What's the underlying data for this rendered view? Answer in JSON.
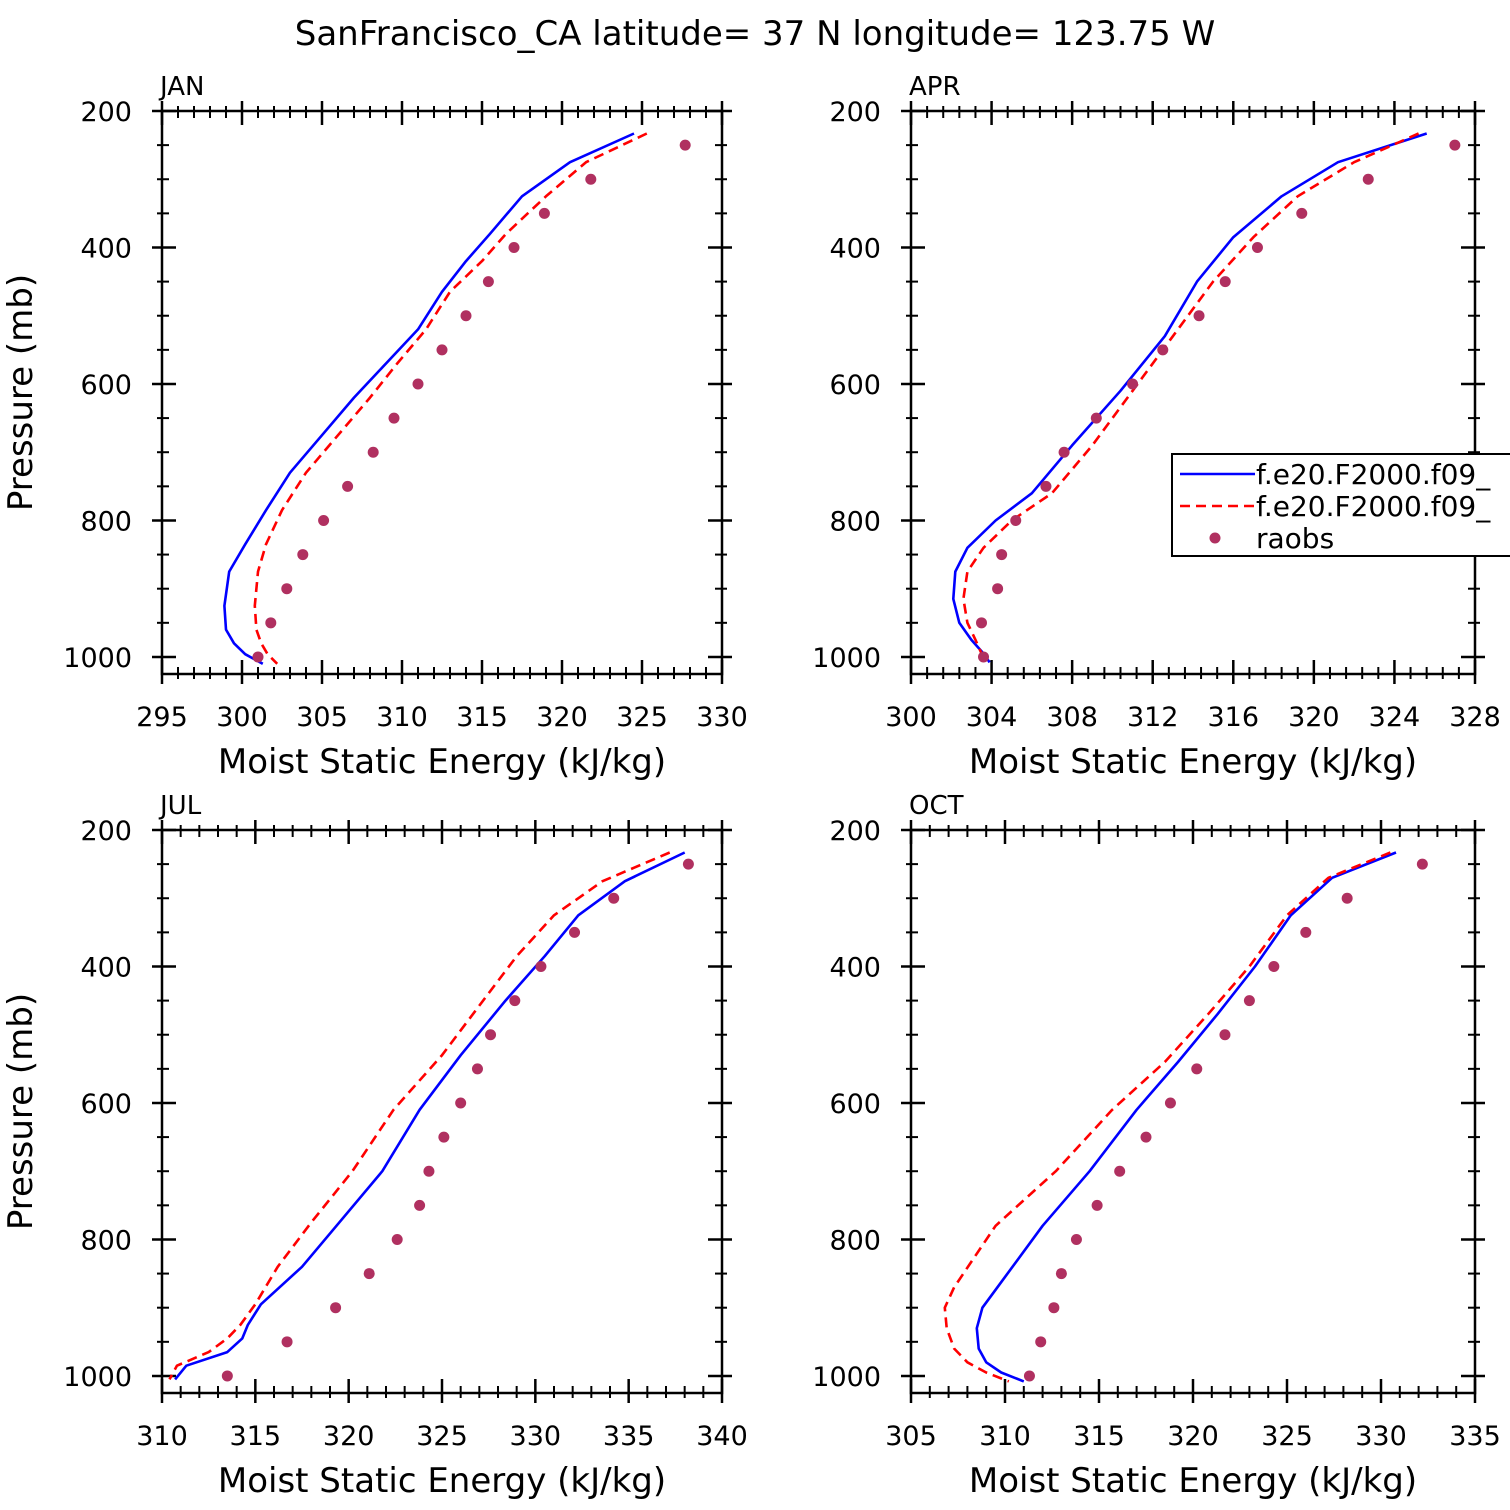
{
  "figure": {
    "title": "SanFrancisco_CA  latitude= 37 N longitude= 123.75 W"
  },
  "legend": {
    "entries": [
      {
        "label": "f.e20.F2000.f09_",
        "color": "#0000ff",
        "style": "solid"
      },
      {
        "label": "f.e20.F2000.f09_",
        "color": "#ff0000",
        "style": "dashed"
      },
      {
        "label": "raobs",
        "color": "#b03060",
        "style": "dots"
      }
    ]
  },
  "chart_data": [
    {
      "type": "line",
      "title": "JAN",
      "xlabel": "Moist Static Energy (kJ/kg)",
      "ylabel": "Pressure (mb)",
      "xlim": [
        295,
        330
      ],
      "ylim": [
        1000,
        200
      ],
      "x_ticks": [
        295,
        300,
        305,
        310,
        315,
        320,
        325,
        330
      ],
      "y_ticks": [
        200,
        400,
        600,
        800,
        1000
      ],
      "grid": false,
      "series": [
        {
          "name": "f.e20.F2000.f09_",
          "color": "#0000ff",
          "style": "solid",
          "x": [
            324.5,
            320.5,
            317.5,
            315.5,
            314,
            312.5,
            311,
            309,
            307,
            305,
            303,
            301.5,
            300.2,
            299.2,
            298.9,
            299,
            299.5,
            300.2,
            301.3
          ],
          "y": [
            233,
            275,
            325,
            380,
            420,
            465,
            520,
            570,
            620,
            675,
            730,
            785,
            835,
            875,
            925,
            960,
            980,
            996,
            1010
          ]
        },
        {
          "name": "f.e20.F2000.f09_",
          "color": "#ff0000",
          "style": "dashed",
          "x": [
            325.3,
            321.5,
            319,
            316.5,
            315,
            313,
            311.5,
            309.7,
            308,
            306,
            304,
            302.5,
            301.5,
            301,
            300.8,
            300.9,
            301.2,
            301.6,
            302.2
          ],
          "y": [
            233,
            275,
            325,
            380,
            420,
            465,
            520,
            570,
            620,
            675,
            730,
            785,
            835,
            875,
            925,
            960,
            980,
            996,
            1010
          ]
        },
        {
          "name": "raobs",
          "color": "#b03060",
          "style": "dots",
          "x": [
            327.7,
            321.8,
            318.9,
            317.0,
            315.4,
            314.0,
            312.5,
            311.0,
            309.5,
            308.2,
            306.6,
            305.1,
            303.8,
            302.8,
            301.8,
            301.0
          ],
          "y": [
            250,
            300,
            350,
            400,
            450,
            500,
            550,
            600,
            650,
            700,
            750,
            800,
            850,
            900,
            950,
            1000
          ]
        }
      ]
    },
    {
      "type": "line",
      "title": "APR",
      "xlabel": "Moist Static Energy (kJ/kg)",
      "ylabel": "",
      "xlim": [
        300,
        328
      ],
      "ylim": [
        1000,
        200
      ],
      "x_ticks": [
        300,
        304,
        308,
        312,
        316,
        320,
        324,
        328
      ],
      "y_ticks": [
        200,
        400,
        600,
        800,
        1000
      ],
      "grid": false,
      "series": [
        {
          "name": "f.e20.F2000.f09_",
          "color": "#0000ff",
          "style": "solid",
          "x": [
            325.6,
            321.2,
            318.4,
            316,
            314.2,
            312.6,
            310.4,
            308,
            306,
            304.2,
            302.8,
            302.2,
            302.1,
            302.4,
            303,
            303.6,
            303.9
          ],
          "y": [
            233,
            275,
            325,
            385,
            450,
            530,
            610,
            690,
            760,
            800,
            840,
            875,
            915,
            950,
            975,
            995,
            1008
          ]
        },
        {
          "name": "f.e20.F2000.f09_",
          "color": "#ff0000",
          "style": "dashed",
          "x": [
            325.2,
            322,
            319.2,
            317,
            315,
            313,
            311,
            309,
            307,
            305,
            303.6,
            302.8,
            302.6,
            302.8,
            303.2,
            303.5,
            303.6
          ],
          "y": [
            233,
            275,
            325,
            385,
            450,
            530,
            610,
            690,
            760,
            800,
            840,
            875,
            915,
            950,
            975,
            995,
            1008
          ]
        },
        {
          "name": "raobs",
          "color": "#b03060",
          "style": "dots",
          "x": [
            327.0,
            322.7,
            319.4,
            317.2,
            315.6,
            314.3,
            312.5,
            311.0,
            309.2,
            307.6,
            306.7,
            305.2,
            304.5,
            304.3,
            303.5,
            303.6
          ],
          "y": [
            250,
            300,
            350,
            400,
            450,
            500,
            550,
            600,
            650,
            700,
            750,
            800,
            850,
            900,
            950,
            1000
          ]
        }
      ]
    },
    {
      "type": "line",
      "title": "JUL",
      "xlabel": "Moist Static Energy (kJ/kg)",
      "ylabel": "Pressure (mb)",
      "xlim": [
        310,
        340
      ],
      "ylim": [
        1000,
        200
      ],
      "x_ticks": [
        310,
        315,
        320,
        325,
        330,
        335,
        340
      ],
      "y_ticks": [
        200,
        400,
        600,
        800,
        1000
      ],
      "grid": false,
      "series": [
        {
          "name": "f.e20.F2000.f09_",
          "color": "#0000ff",
          "style": "solid",
          "x": [
            338,
            334.8,
            332.3,
            330.5,
            328.4,
            326,
            323.8,
            321.8,
            319.5,
            317.5,
            315.3,
            314.6,
            314.3,
            313.5,
            311.3,
            310.7
          ],
          "y": [
            233,
            275,
            325,
            385,
            450,
            530,
            610,
            700,
            775,
            840,
            895,
            925,
            945,
            965,
            985,
            1005
          ]
        },
        {
          "name": "f.e20.F2000.f09_",
          "color": "#ff0000",
          "style": "dashed",
          "x": [
            337.2,
            333.6,
            331,
            329,
            327.2,
            325,
            322.4,
            320.2,
            318,
            316.2,
            315,
            314.2,
            313.5,
            312.5,
            310.8,
            310.4
          ],
          "y": [
            233,
            275,
            325,
            385,
            450,
            530,
            610,
            700,
            775,
            840,
            895,
            925,
            945,
            965,
            985,
            1005
          ]
        },
        {
          "name": "raobs",
          "color": "#b03060",
          "style": "dots",
          "x": [
            338.2,
            334.2,
            332.1,
            330.3,
            328.9,
            327.6,
            326.9,
            326.0,
            325.1,
            324.3,
            323.8,
            322.6,
            321.1,
            319.3,
            316.7,
            313.5
          ],
          "y": [
            250,
            300,
            350,
            400,
            450,
            500,
            550,
            600,
            650,
            700,
            750,
            800,
            850,
            900,
            950,
            1000
          ]
        }
      ]
    },
    {
      "type": "line",
      "title": "OCT",
      "xlabel": "Moist Static Energy (kJ/kg)",
      "ylabel": "",
      "xlim": [
        305,
        335
      ],
      "ylim": [
        1000,
        200
      ],
      "x_ticks": [
        305,
        310,
        315,
        320,
        325,
        330,
        335
      ],
      "y_ticks": [
        200,
        400,
        600,
        800,
        1000
      ],
      "grid": false,
      "series": [
        {
          "name": "f.e20.F2000.f09_",
          "color": "#0000ff",
          "style": "solid",
          "x": [
            330.8,
            327.4,
            325.2,
            323.3,
            321.3,
            319.2,
            317.0,
            314.5,
            312,
            309.6,
            308.8,
            308.5,
            308.6,
            309,
            309.8,
            311
          ],
          "y": [
            233,
            270,
            325,
            400,
            470,
            540,
            610,
            700,
            780,
            870,
            900,
            930,
            960,
            980,
            995,
            1008
          ]
        },
        {
          "name": "f.e20.F2000.f09_",
          "color": "#ff0000",
          "style": "dashed",
          "x": [
            330.5,
            327.2,
            325.0,
            323.0,
            320.8,
            318.5,
            315.7,
            312.7,
            309.5,
            307.3,
            306.8,
            306.9,
            307.3,
            308.0,
            309.0,
            310.2
          ],
          "y": [
            233,
            270,
            325,
            400,
            470,
            540,
            610,
            700,
            780,
            870,
            900,
            930,
            960,
            980,
            995,
            1008
          ]
        },
        {
          "name": "raobs",
          "color": "#b03060",
          "style": "dots",
          "x": [
            332.2,
            328.2,
            326.0,
            324.3,
            323.0,
            321.7,
            320.2,
            318.8,
            317.5,
            316.1,
            314.9,
            313.8,
            313.0,
            312.6,
            311.9,
            311.3
          ],
          "y": [
            250,
            300,
            350,
            400,
            450,
            500,
            550,
            600,
            650,
            700,
            750,
            800,
            850,
            900,
            950,
            1000
          ]
        }
      ]
    }
  ]
}
